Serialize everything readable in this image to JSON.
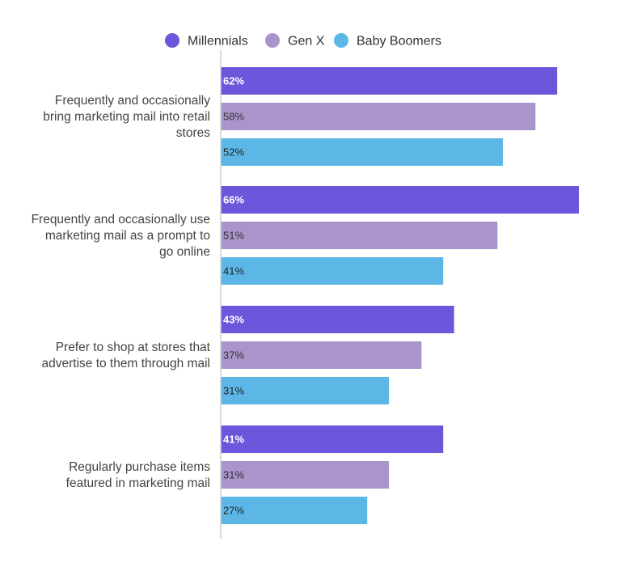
{
  "chart_data": {
    "type": "bar",
    "orientation": "horizontal",
    "categories": [
      [
        "Frequently and occasionally",
        "bring marketing mail into retail",
        "stores"
      ],
      [
        "Frequently and occasionally use",
        "marketing mail as a prompt to",
        "go online"
      ],
      [
        "Prefer to shop at stores that",
        "advertise to them through mail"
      ],
      [
        "Regularly purchase items",
        "featured in marketing mail"
      ]
    ],
    "series": [
      {
        "name": "Millennials",
        "color": "#6d55dc",
        "label_color": "#ffffff",
        "values": [
          62,
          66,
          43,
          41
        ]
      },
      {
        "name": "Gen X",
        "color": "#ab93cb",
        "label_color": "#333333",
        "values": [
          58,
          51,
          37,
          31
        ]
      },
      {
        "name": "Baby Boomers",
        "color": "#5db7e6",
        "label_color": "#222222",
        "values": [
          52,
          41,
          31,
          27
        ]
      }
    ],
    "value_suffix": "%",
    "xlim": [
      0,
      66
    ],
    "legend_position": "top",
    "grid": false
  }
}
